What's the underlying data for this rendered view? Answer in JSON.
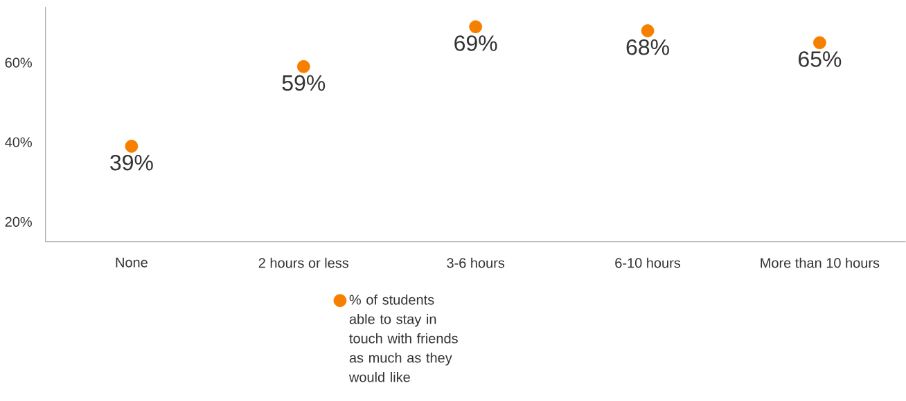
{
  "chart_data": {
    "type": "scatter",
    "categories": [
      "None",
      "2 hours or less",
      "3-6 hours",
      "6-10 hours",
      "More than 10 hours"
    ],
    "series": [
      {
        "name": "% of students able to stay in touch with friends as much as they would like",
        "color": "#f77f00",
        "values": [
          39,
          59,
          69,
          68,
          65
        ],
        "value_labels": [
          "39%",
          "59%",
          "69%",
          "68%",
          "65%"
        ]
      }
    ],
    "ylim": [
      15,
      74
    ],
    "yticks": [
      {
        "value": 20,
        "label": "20%"
      },
      {
        "value": 40,
        "label": "40%"
      },
      {
        "value": 60,
        "label": "60%"
      }
    ],
    "marker": "circle",
    "legend": "bottom",
    "grid": false
  }
}
